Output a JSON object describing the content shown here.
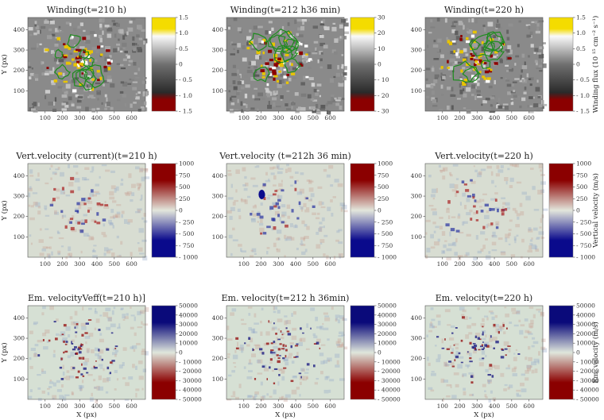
{
  "chart_data": {
    "type": "heatmap",
    "grid_rows": 3,
    "grid_cols": 3,
    "x_axis": {
      "label": "X (px)",
      "ticks": [
        100,
        200,
        300,
        400,
        500,
        600
      ],
      "range": [
        0,
        680
      ]
    },
    "y_axis": {
      "label": "Y (px)",
      "ticks": [
        100,
        200,
        300,
        400
      ],
      "range": [
        0,
        460
      ]
    },
    "rows": [
      {
        "id": "winding",
        "panels": [
          {
            "title": "Winding(t=210 h)",
            "colorbar_ticks": [
              "1.5",
              "1.0",
              "0.5",
              "0",
              "- 0.5",
              "- 1.0",
              "- 1.5"
            ],
            "range": [
              -1.5,
              1.5
            ]
          },
          {
            "title": "Winding(t=212 h36 min)",
            "colorbar_ticks": [
              "30",
              "20",
              "10",
              "0",
              "- 10",
              "- 20",
              "- 30"
            ],
            "range": [
              -30,
              30
            ]
          },
          {
            "title": "Winding(t=220 h)",
            "colorbar_ticks": [
              "1.5",
              "1.0",
              "0.5",
              "0",
              "- 0.5",
              "- 1.0",
              "- 1.5"
            ],
            "range": [
              -1.5,
              1.5
            ]
          }
        ],
        "colorbar_label": "Winding flux (10 ¹⁵ cm⁻² s⁻¹)",
        "colors": {
          "high": "#e8c400",
          "mid": "#f2f2f2",
          "low": "#8b0000",
          "contour": "#1e8c1e",
          "background": "#8a8a8a"
        }
      },
      {
        "id": "vertical",
        "panels": [
          {
            "title": "Vert.velocity (current)(t=210 h)",
            "colorbar_ticks": [
              "1000",
              "750",
              "500",
              "250",
              "0",
              "- 250",
              "- 500",
              "- 750",
              "- 1000"
            ],
            "range": [
              -1000,
              1000
            ]
          },
          {
            "title": "Vert.velocity (t=212h 36 min)",
            "colorbar_ticks": [
              "1000",
              "750",
              "500",
              "250",
              "0",
              "- 250",
              "- 500",
              "- 750",
              "- 1000"
            ],
            "range": [
              -1000,
              1000
            ]
          },
          {
            "title": "Vert.velocity(t=220 h)",
            "colorbar_ticks": [
              "1000",
              "750",
              "500",
              "250",
              "0",
              "- 250",
              "- 500",
              "- 750",
              "- 1000"
            ],
            "range": [
              -1000,
              1000
            ]
          }
        ],
        "colorbar_label": "Vertical velocity (m/s)",
        "colors": {
          "high": "#8b0000",
          "mid": "#e3e6dc",
          "low": "#0a0a8c",
          "background": "#d8ddd2"
        }
      },
      {
        "id": "emergence",
        "panels": [
          {
            "title": "Em. velocityVeff(t=210 h)]",
            "colorbar_ticks": [
              "50000",
              "40000",
              "30000",
              "20000",
              "10000",
              "0",
              "- 10000",
              "- 20000",
              "- 30000",
              "- 40000",
              "- 50000"
            ],
            "range": [
              -50000,
              50000
            ]
          },
          {
            "title": "Em. velocity(t=212 h 36min)",
            "colorbar_ticks": [
              "50000",
              "40000",
              "30000",
              "20000",
              "10000",
              "0",
              "- 10000",
              "- 20000",
              "- 30000",
              "- 40000",
              "- 50000"
            ],
            "range": [
              -50000,
              50000
            ]
          },
          {
            "title": "Em. velocity(t=220 h)",
            "colorbar_ticks": [
              "50000",
              "40000",
              "30000",
              "20000",
              "10000",
              "0",
              "- 10000",
              "- 20000",
              "- 30000",
              "- 40000",
              "- 50000"
            ],
            "range": [
              -50000,
              50000
            ]
          }
        ],
        "colorbar_label": "Em. velocity (m/s)",
        "colors": {
          "high": "#0a0a7a",
          "mid": "#dfe6dc",
          "low": "#8b0000",
          "background": "#d6e0d4"
        }
      }
    ]
  }
}
